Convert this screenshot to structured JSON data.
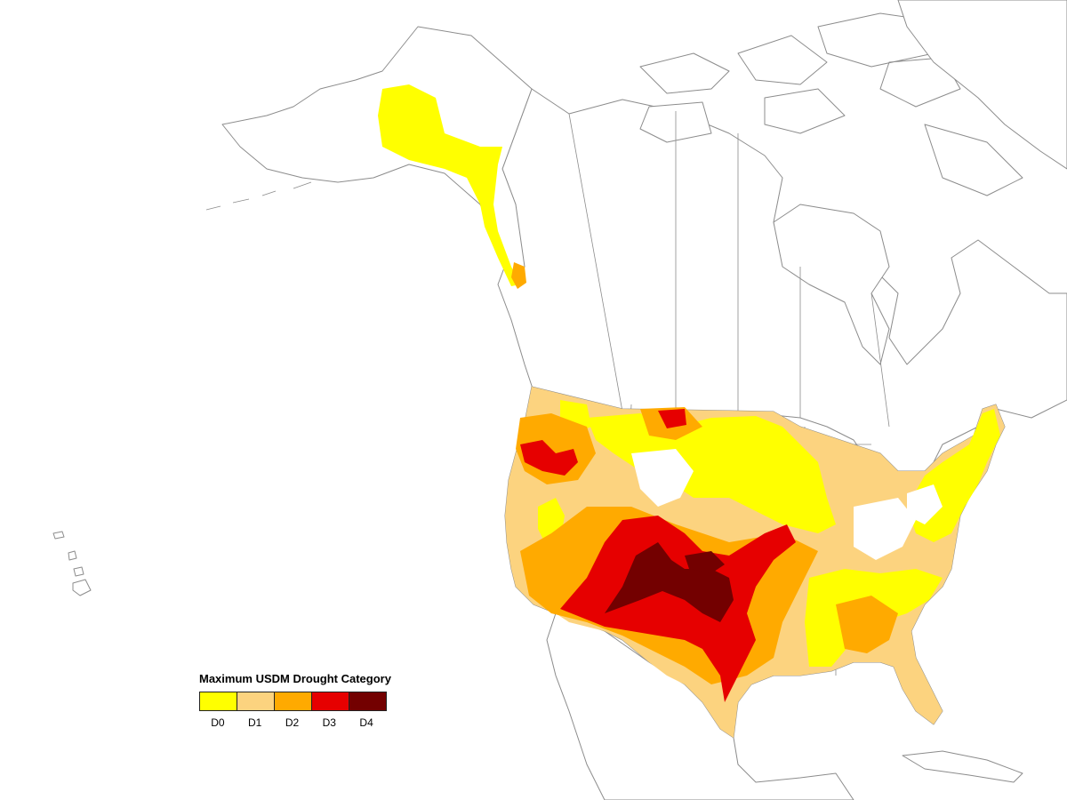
{
  "legend": {
    "title": "Maximum USDM Drought Category",
    "categories": [
      {
        "label": "D0",
        "color": "#ffff00"
      },
      {
        "label": "D1",
        "color": "#fcd37f"
      },
      {
        "label": "D2",
        "color": "#ffaa00"
      },
      {
        "label": "D3",
        "color": "#e60000"
      },
      {
        "label": "D4",
        "color": "#730000"
      }
    ]
  },
  "colors": {
    "land": "#ffffff",
    "border": "#8c8c8c",
    "none": "#ffffff"
  }
}
